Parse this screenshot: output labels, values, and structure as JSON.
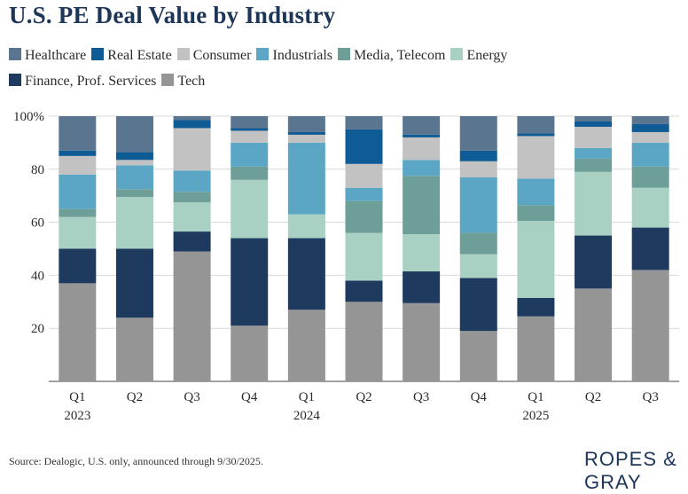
{
  "chart_data": {
    "type": "bar",
    "stacked": true,
    "title": "U.S. PE Deal Value by Industry",
    "ylabel": "",
    "xlabel": "",
    "ylim": [
      0,
      100
    ],
    "yticks": [
      20,
      40,
      60,
      80,
      100
    ],
    "ytick_labels": [
      "20",
      "40",
      "60",
      "80",
      "100%"
    ],
    "legend_position": "top",
    "categories": [
      "Q1",
      "Q2",
      "Q3",
      "Q4",
      "Q1",
      "Q2",
      "Q3",
      "Q4",
      "Q1",
      "Q2",
      "Q3"
    ],
    "years": [
      "2023",
      "",
      "",
      "",
      "2024",
      "",
      "",
      "",
      "2025",
      "",
      ""
    ],
    "series": [
      {
        "name": "Tech",
        "color": "#959595",
        "values": [
          37,
          24,
          49,
          21,
          27,
          30,
          29.5,
          19,
          24.5,
          35,
          42
        ]
      },
      {
        "name": "Finance, Prof. Services",
        "color": "#1e3a5f",
        "values": [
          13,
          26,
          7.5,
          33,
          27,
          8,
          12,
          20,
          7,
          20,
          16
        ]
      },
      {
        "name": "Energy",
        "color": "#a8d1c3",
        "values": [
          12,
          19.5,
          11,
          22,
          9,
          18,
          14,
          9,
          29,
          24,
          15
        ]
      },
      {
        "name": "Media, Telecom",
        "color": "#6d9e97",
        "values": [
          3,
          3,
          4,
          5,
          0,
          12,
          22,
          8,
          6,
          5,
          8
        ]
      },
      {
        "name": "Industrials",
        "color": "#5aa6c4",
        "values": [
          13,
          9,
          8,
          9,
          27,
          5,
          6,
          21,
          10,
          4,
          9
        ]
      },
      {
        "name": "Consumer",
        "color": "#c2c2c2",
        "values": [
          7,
          2,
          16,
          4.5,
          3,
          9,
          8.5,
          6,
          16,
          8,
          4
        ]
      },
      {
        "name": "Real Estate",
        "color": "#0f5b95",
        "values": [
          2,
          3,
          3,
          1,
          1,
          13,
          1,
          4,
          1,
          2,
          3
        ]
      },
      {
        "name": "Healthcare",
        "color": "#5a7590",
        "values": [
          13,
          13.5,
          1.5,
          4.5,
          6,
          5,
          7,
          13,
          6.5,
          2,
          3
        ]
      }
    ]
  },
  "legend": {
    "items": [
      {
        "label": "Healthcare",
        "color": "#5a7590"
      },
      {
        "label": "Real Estate",
        "color": "#0f5b95"
      },
      {
        "label": "Consumer",
        "color": "#c2c2c2"
      },
      {
        "label": "Industrials",
        "color": "#5aa6c4"
      },
      {
        "label": "Media, Telecom",
        "color": "#6d9e97"
      },
      {
        "label": "Energy",
        "color": "#a8d1c3"
      },
      {
        "label": "Finance, Prof. Services",
        "color": "#1e3a5f"
      },
      {
        "label": "Tech",
        "color": "#959595"
      }
    ]
  },
  "footer": {
    "source": "Source: Dealogic, U.S. only, announced through 9/30/2025.",
    "logo": "ROPES & GRAY"
  }
}
